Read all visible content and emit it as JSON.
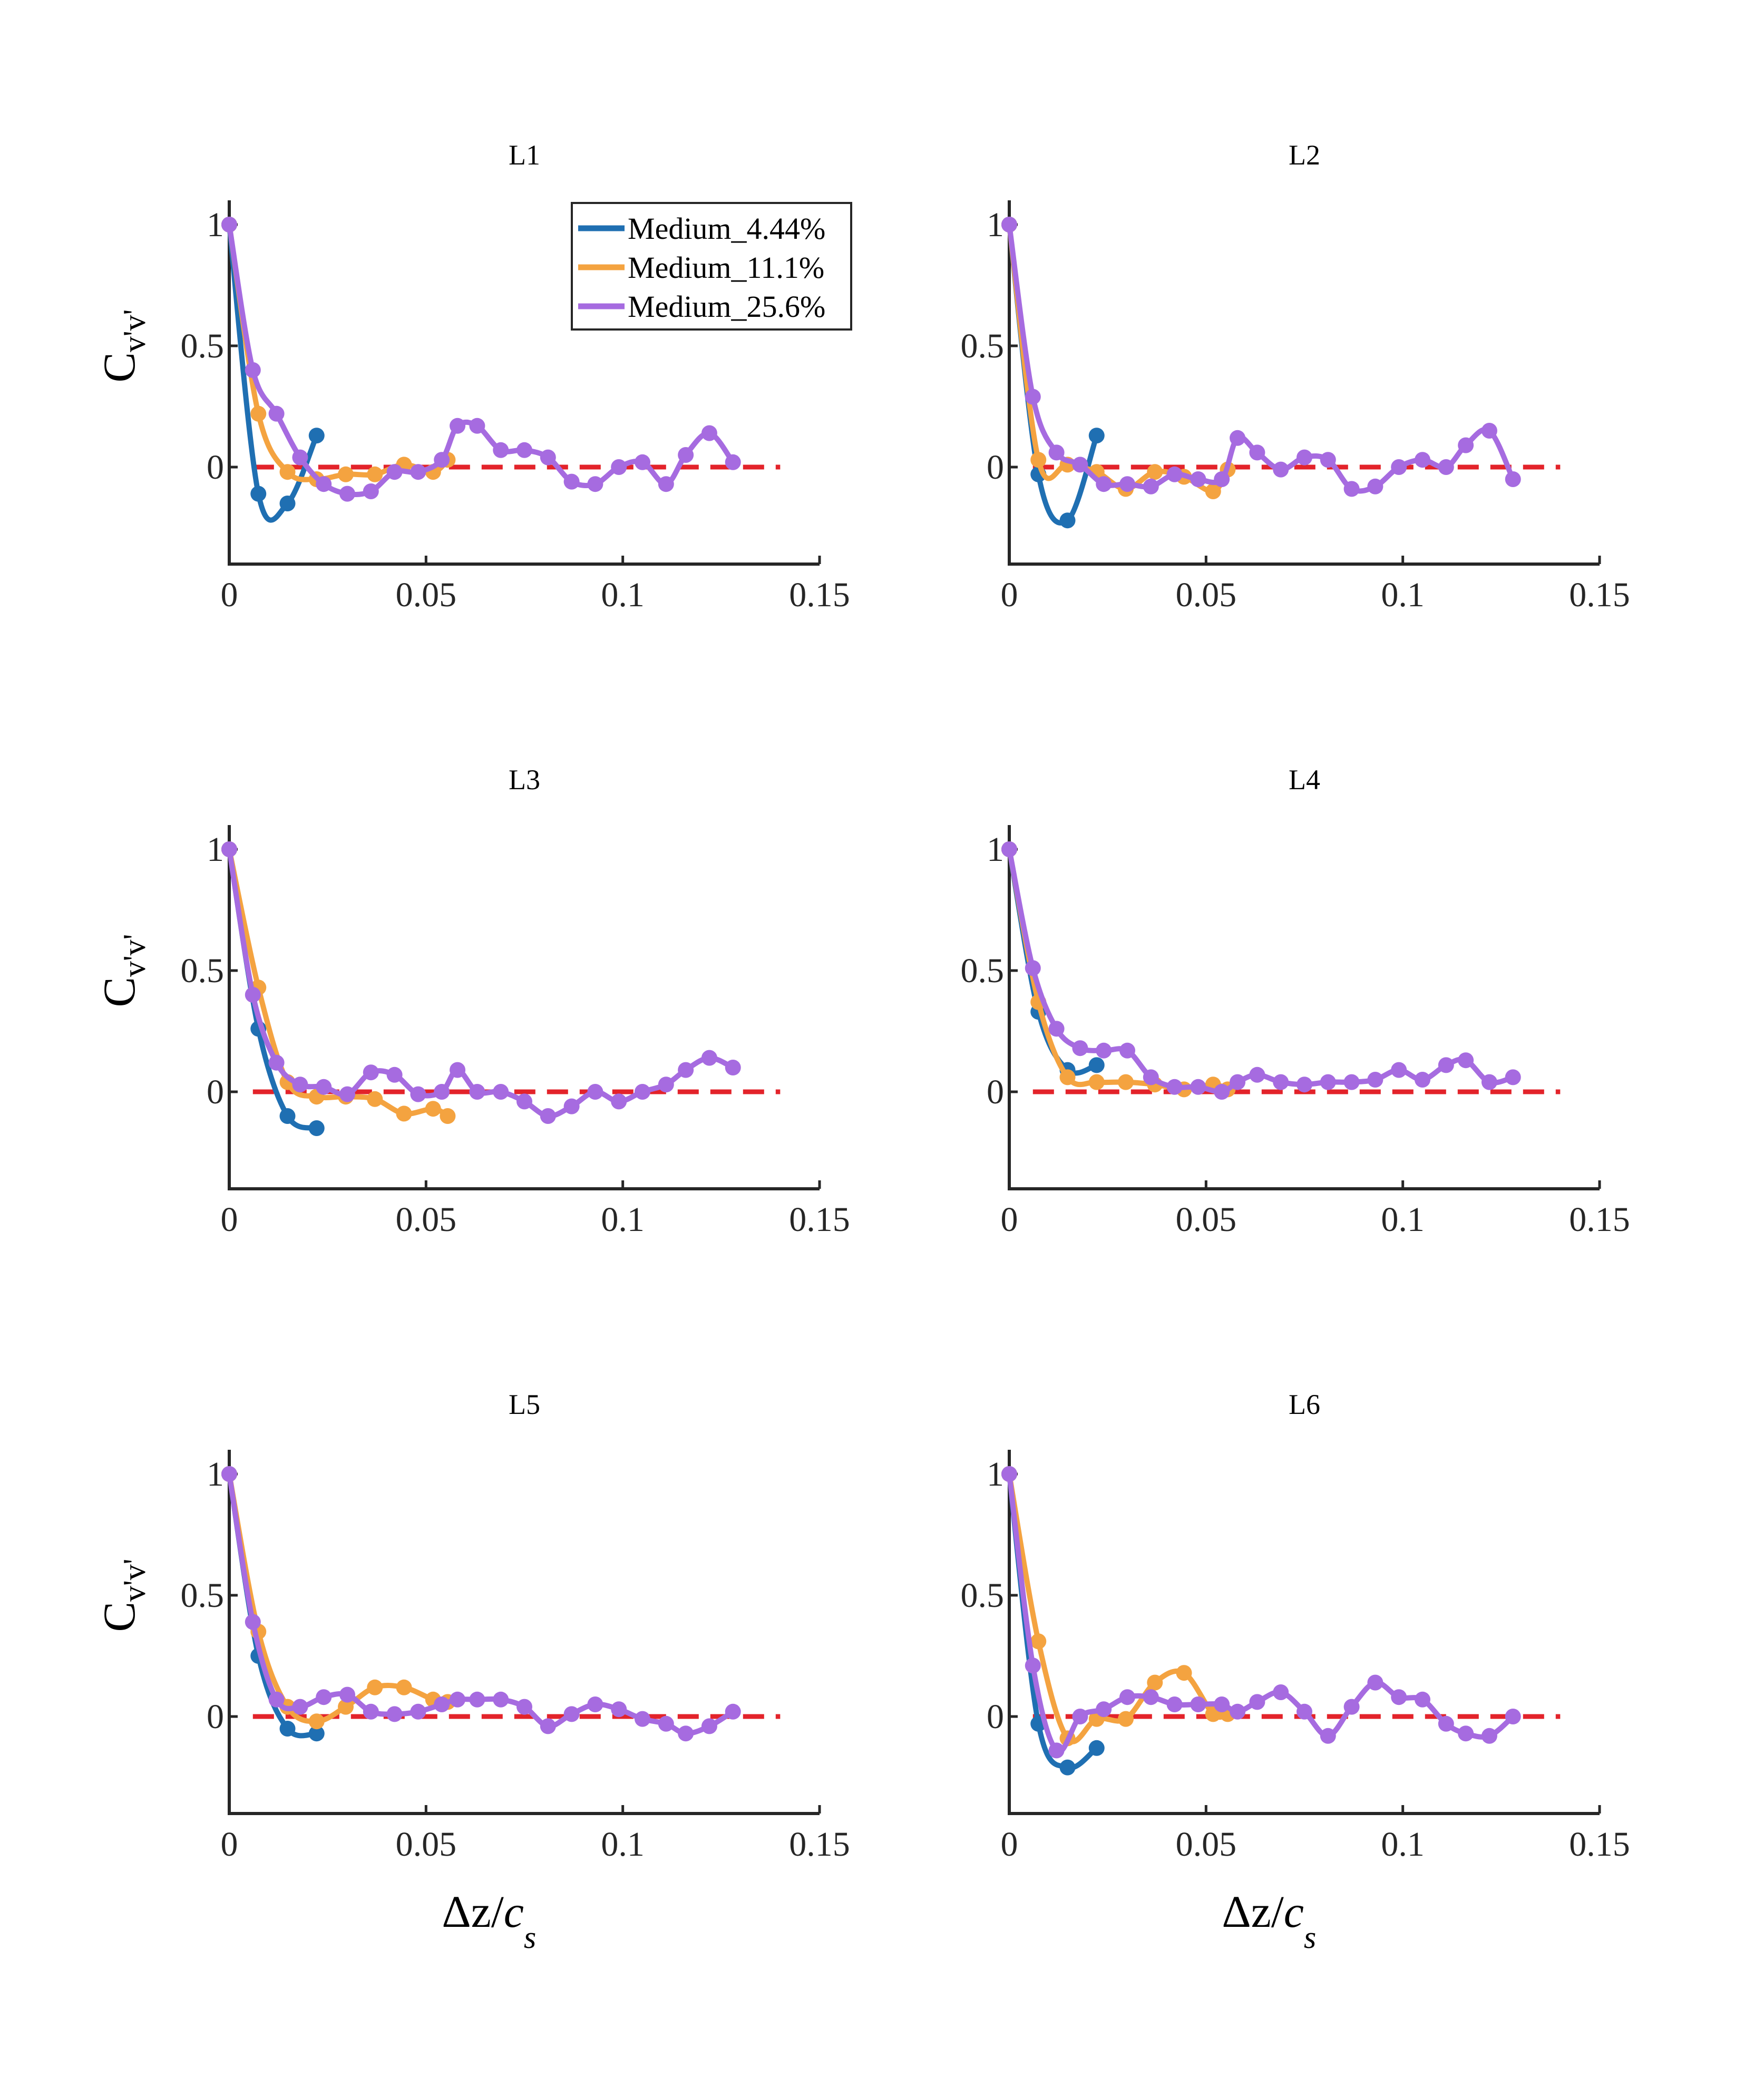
{
  "chart_data": {
    "type": "line",
    "series_meta": [
      {
        "name": "Medium_4.44%",
        "color": "#1f6fb2"
      },
      {
        "name": "Medium_11.1%",
        "color": "#f4a340"
      },
      {
        "name": "Medium_25.6%",
        "color": "#a66be0"
      }
    ],
    "reference": {
      "y": 0,
      "x_range": [
        0.006,
        0.14
      ],
      "color": "#e3232a",
      "style": "dashed"
    },
    "xlim": [
      0,
      0.15
    ],
    "ylim": [
      -0.4,
      1.1
    ],
    "xticks": [
      "0",
      "0.05",
      "0.1",
      "0.15"
    ],
    "yticks": [
      "1",
      "0.5",
      "0"
    ],
    "ytick_values": [
      1,
      0.5,
      0
    ],
    "xtick_values": [
      0,
      0.05,
      0.1,
      0.15
    ],
    "ylabel": {
      "main": "C",
      "sub": "v'v'"
    },
    "xlabel": {
      "main": "Δz/",
      "italic": "c",
      "sub": "s"
    },
    "panels": [
      {
        "title": "L1",
        "series": [
          {
            "x": [
              0,
              0.0074,
              0.0148,
              0.0222
            ],
            "y": [
              1.0,
              -0.11,
              -0.15,
              0.13
            ]
          },
          {
            "x": [
              0,
              0.0074,
              0.0148,
              0.0222,
              0.0296,
              0.037,
              0.0444,
              0.0518,
              0.0555
            ],
            "y": [
              1.0,
              0.22,
              -0.02,
              -0.05,
              -0.03,
              -0.03,
              0.01,
              -0.02,
              0.03
            ]
          },
          {
            "x": [
              0,
              0.006,
              0.012,
              0.018,
              0.024,
              0.03,
              0.036,
              0.042,
              0.048,
              0.054,
              0.058,
              0.063,
              0.069,
              0.075,
              0.081,
              0.087,
              0.093,
              0.099,
              0.105,
              0.111,
              0.116,
              0.122,
              0.128
            ],
            "y": [
              1.0,
              0.4,
              0.22,
              0.04,
              -0.07,
              -0.11,
              -0.1,
              -0.02,
              -0.02,
              0.03,
              0.17,
              0.17,
              0.07,
              0.07,
              0.04,
              -0.06,
              -0.07,
              0.0,
              0.02,
              -0.07,
              0.05,
              0.14,
              0.02
            ]
          }
        ]
      },
      {
        "title": "L2",
        "series": [
          {
            "x": [
              0,
              0.0074,
              0.0148,
              0.0222
            ],
            "y": [
              1.0,
              -0.03,
              -0.22,
              0.13
            ]
          },
          {
            "x": [
              0,
              0.0074,
              0.0148,
              0.0222,
              0.0296,
              0.037,
              0.0444,
              0.0518,
              0.0555
            ],
            "y": [
              1.0,
              0.03,
              0.01,
              -0.02,
              -0.09,
              -0.02,
              -0.04,
              -0.1,
              -0.01
            ]
          },
          {
            "x": [
              0,
              0.006,
              0.012,
              0.018,
              0.024,
              0.03,
              0.036,
              0.042,
              0.048,
              0.054,
              0.058,
              0.063,
              0.069,
              0.075,
              0.081,
              0.087,
              0.093,
              0.099,
              0.105,
              0.111,
              0.116,
              0.122,
              0.128
            ],
            "y": [
              1.0,
              0.29,
              0.06,
              0.01,
              -0.07,
              -0.07,
              -0.08,
              -0.03,
              -0.05,
              -0.05,
              0.12,
              0.06,
              -0.01,
              0.04,
              0.03,
              -0.09,
              -0.08,
              0.0,
              0.03,
              0.0,
              0.09,
              0.15,
              -0.05
            ]
          }
        ]
      },
      {
        "title": "L3",
        "series": [
          {
            "x": [
              0,
              0.0074,
              0.0148,
              0.0222
            ],
            "y": [
              1.0,
              0.26,
              -0.1,
              -0.15
            ]
          },
          {
            "x": [
              0,
              0.0074,
              0.0148,
              0.0222,
              0.0296,
              0.037,
              0.0444,
              0.0518,
              0.0555
            ],
            "y": [
              1.0,
              0.43,
              0.04,
              -0.02,
              -0.02,
              -0.03,
              -0.09,
              -0.07,
              -0.1
            ]
          },
          {
            "x": [
              0,
              0.006,
              0.012,
              0.018,
              0.024,
              0.03,
              0.036,
              0.042,
              0.048,
              0.054,
              0.058,
              0.063,
              0.069,
              0.075,
              0.081,
              0.087,
              0.093,
              0.099,
              0.105,
              0.111,
              0.116,
              0.122,
              0.128
            ],
            "y": [
              1.0,
              0.4,
              0.12,
              0.03,
              0.02,
              -0.01,
              0.08,
              0.07,
              -0.01,
              0.0,
              0.09,
              0.0,
              0.0,
              -0.04,
              -0.1,
              -0.06,
              0.0,
              -0.04,
              0.0,
              0.03,
              0.09,
              0.14,
              0.1
            ]
          }
        ]
      },
      {
        "title": "L4",
        "series": [
          {
            "x": [
              0,
              0.0074,
              0.0148,
              0.0222
            ],
            "y": [
              1.0,
              0.33,
              0.09,
              0.11
            ]
          },
          {
            "x": [
              0,
              0.0074,
              0.0148,
              0.0222,
              0.0296,
              0.037,
              0.0444,
              0.0518,
              0.0555
            ],
            "y": [
              1.0,
              0.37,
              0.06,
              0.04,
              0.04,
              0.03,
              0.01,
              0.03,
              0.01
            ]
          },
          {
            "x": [
              0,
              0.006,
              0.012,
              0.018,
              0.024,
              0.03,
              0.036,
              0.042,
              0.048,
              0.054,
              0.058,
              0.063,
              0.069,
              0.075,
              0.081,
              0.087,
              0.093,
              0.099,
              0.105,
              0.111,
              0.116,
              0.122,
              0.128
            ],
            "y": [
              1.0,
              0.51,
              0.26,
              0.18,
              0.17,
              0.17,
              0.06,
              0.02,
              0.02,
              0.0,
              0.04,
              0.07,
              0.04,
              0.03,
              0.04,
              0.04,
              0.05,
              0.09,
              0.05,
              0.11,
              0.13,
              0.04,
              0.06
            ]
          }
        ]
      },
      {
        "title": "L5",
        "series": [
          {
            "x": [
              0,
              0.0074,
              0.0148,
              0.0222
            ],
            "y": [
              1.0,
              0.25,
              -0.05,
              -0.07
            ]
          },
          {
            "x": [
              0,
              0.0074,
              0.0148,
              0.0222,
              0.0296,
              0.037,
              0.0444,
              0.0518,
              0.0555
            ],
            "y": [
              1.0,
              0.35,
              0.04,
              -0.02,
              0.04,
              0.12,
              0.12,
              0.07,
              0.06
            ]
          },
          {
            "x": [
              0,
              0.006,
              0.012,
              0.018,
              0.024,
              0.03,
              0.036,
              0.042,
              0.048,
              0.054,
              0.058,
              0.063,
              0.069,
              0.075,
              0.081,
              0.087,
              0.093,
              0.099,
              0.105,
              0.111,
              0.116,
              0.122,
              0.128
            ],
            "y": [
              1.0,
              0.39,
              0.07,
              0.04,
              0.08,
              0.09,
              0.02,
              0.01,
              0.02,
              0.05,
              0.07,
              0.07,
              0.07,
              0.04,
              -0.04,
              0.01,
              0.05,
              0.03,
              -0.01,
              -0.03,
              -0.07,
              -0.04,
              0.02
            ]
          }
        ]
      },
      {
        "title": "L6",
        "series": [
          {
            "x": [
              0,
              0.0074,
              0.0148,
              0.0222
            ],
            "y": [
              1.0,
              -0.03,
              -0.21,
              -0.13
            ]
          },
          {
            "x": [
              0,
              0.0074,
              0.0148,
              0.0222,
              0.0296,
              0.037,
              0.0444,
              0.0518,
              0.0555
            ],
            "y": [
              1.0,
              0.31,
              -0.09,
              -0.01,
              -0.01,
              0.14,
              0.18,
              0.01,
              0.01
            ]
          },
          {
            "x": [
              0,
              0.006,
              0.012,
              0.018,
              0.024,
              0.03,
              0.036,
              0.042,
              0.048,
              0.054,
              0.058,
              0.063,
              0.069,
              0.075,
              0.081,
              0.087,
              0.093,
              0.099,
              0.105,
              0.111,
              0.116,
              0.122,
              0.128
            ],
            "y": [
              1.0,
              0.21,
              -0.14,
              0.0,
              0.03,
              0.08,
              0.08,
              0.05,
              0.05,
              0.05,
              0.02,
              0.06,
              0.1,
              0.02,
              -0.08,
              0.04,
              0.14,
              0.08,
              0.07,
              -0.03,
              -0.07,
              -0.08,
              0.0
            ]
          }
        ]
      }
    ]
  }
}
